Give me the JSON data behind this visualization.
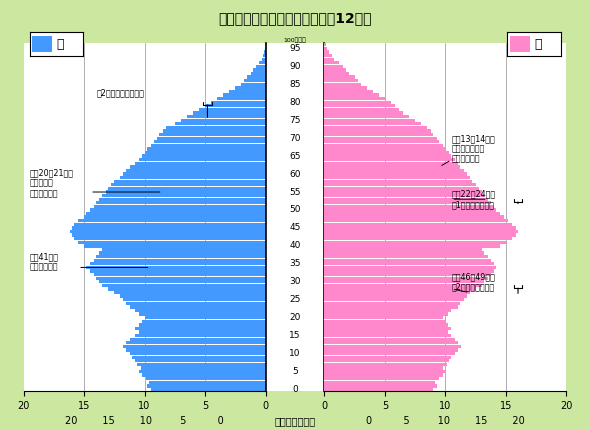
{
  "title": "三重県の人口ピラミッド（平成12年）",
  "xlabel": "（単位：千人）",
  "bg_color": "#cce8a0",
  "plot_bg": "#ffffff",
  "center_bg": "#ffffff",
  "male_color": "#4499ff",
  "female_color": "#ff88cc",
  "xlim": 20,
  "age_labels_center": [
    "0",
    "5",
    "10",
    "15",
    "20",
    "25",
    "30",
    "35",
    "40",
    "45",
    "50",
    "55",
    "60",
    "65",
    "70",
    "75",
    "80",
    "85",
    "90",
    "95"
  ],
  "top_label": "100歳以上",
  "male_data": [
    9.5,
    9.8,
    9.6,
    9.9,
    10.2,
    10.5,
    10.3,
    10.6,
    10.8,
    11.0,
    11.2,
    11.5,
    11.8,
    11.5,
    11.2,
    10.8,
    10.5,
    10.8,
    10.5,
    10.2,
    10.0,
    10.5,
    10.8,
    11.2,
    11.5,
    11.8,
    12.0,
    12.5,
    13.0,
    13.5,
    13.8,
    14.0,
    14.2,
    14.5,
    14.8,
    14.5,
    14.2,
    14.0,
    13.8,
    13.5,
    15.0,
    15.5,
    15.8,
    16.0,
    16.2,
    16.0,
    15.8,
    15.5,
    15.0,
    14.8,
    14.5,
    14.2,
    14.0,
    13.8,
    13.5,
    13.2,
    13.0,
    12.8,
    12.5,
    12.0,
    11.8,
    11.5,
    11.2,
    10.8,
    10.5,
    10.2,
    10.0,
    9.8,
    9.5,
    9.2,
    9.0,
    8.8,
    8.5,
    8.2,
    7.5,
    7.0,
    6.5,
    6.0,
    5.5,
    5.0,
    4.5,
    4.0,
    3.5,
    3.0,
    2.5,
    2.0,
    1.8,
    1.5,
    1.2,
    1.0,
    0.8,
    0.5,
    0.3,
    0.2,
    0.1,
    0.05,
    0.02
  ],
  "female_data": [
    9.0,
    9.3,
    9.1,
    9.5,
    9.8,
    10.0,
    9.8,
    10.1,
    10.3,
    10.5,
    10.8,
    11.0,
    11.3,
    11.0,
    10.8,
    10.5,
    10.2,
    10.5,
    10.2,
    10.0,
    9.8,
    10.2,
    10.5,
    11.0,
    11.2,
    11.5,
    11.8,
    12.0,
    12.5,
    13.0,
    13.2,
    13.5,
    13.8,
    14.0,
    14.2,
    14.0,
    13.8,
    13.5,
    13.2,
    13.0,
    14.5,
    15.0,
    15.5,
    15.8,
    16.0,
    15.8,
    15.5,
    15.2,
    14.8,
    14.5,
    14.2,
    14.0,
    13.8,
    13.5,
    13.2,
    13.0,
    12.8,
    12.5,
    12.2,
    12.0,
    11.8,
    11.5,
    11.2,
    11.0,
    10.8,
    10.5,
    10.3,
    10.0,
    9.8,
    9.5,
    9.3,
    9.0,
    8.8,
    8.5,
    8.0,
    7.5,
    7.0,
    6.5,
    6.2,
    5.8,
    5.5,
    5.0,
    4.5,
    4.0,
    3.5,
    3.0,
    2.8,
    2.5,
    2.0,
    1.8,
    1.5,
    1.2,
    0.8,
    0.6,
    0.4,
    0.2,
    0.1
  ]
}
